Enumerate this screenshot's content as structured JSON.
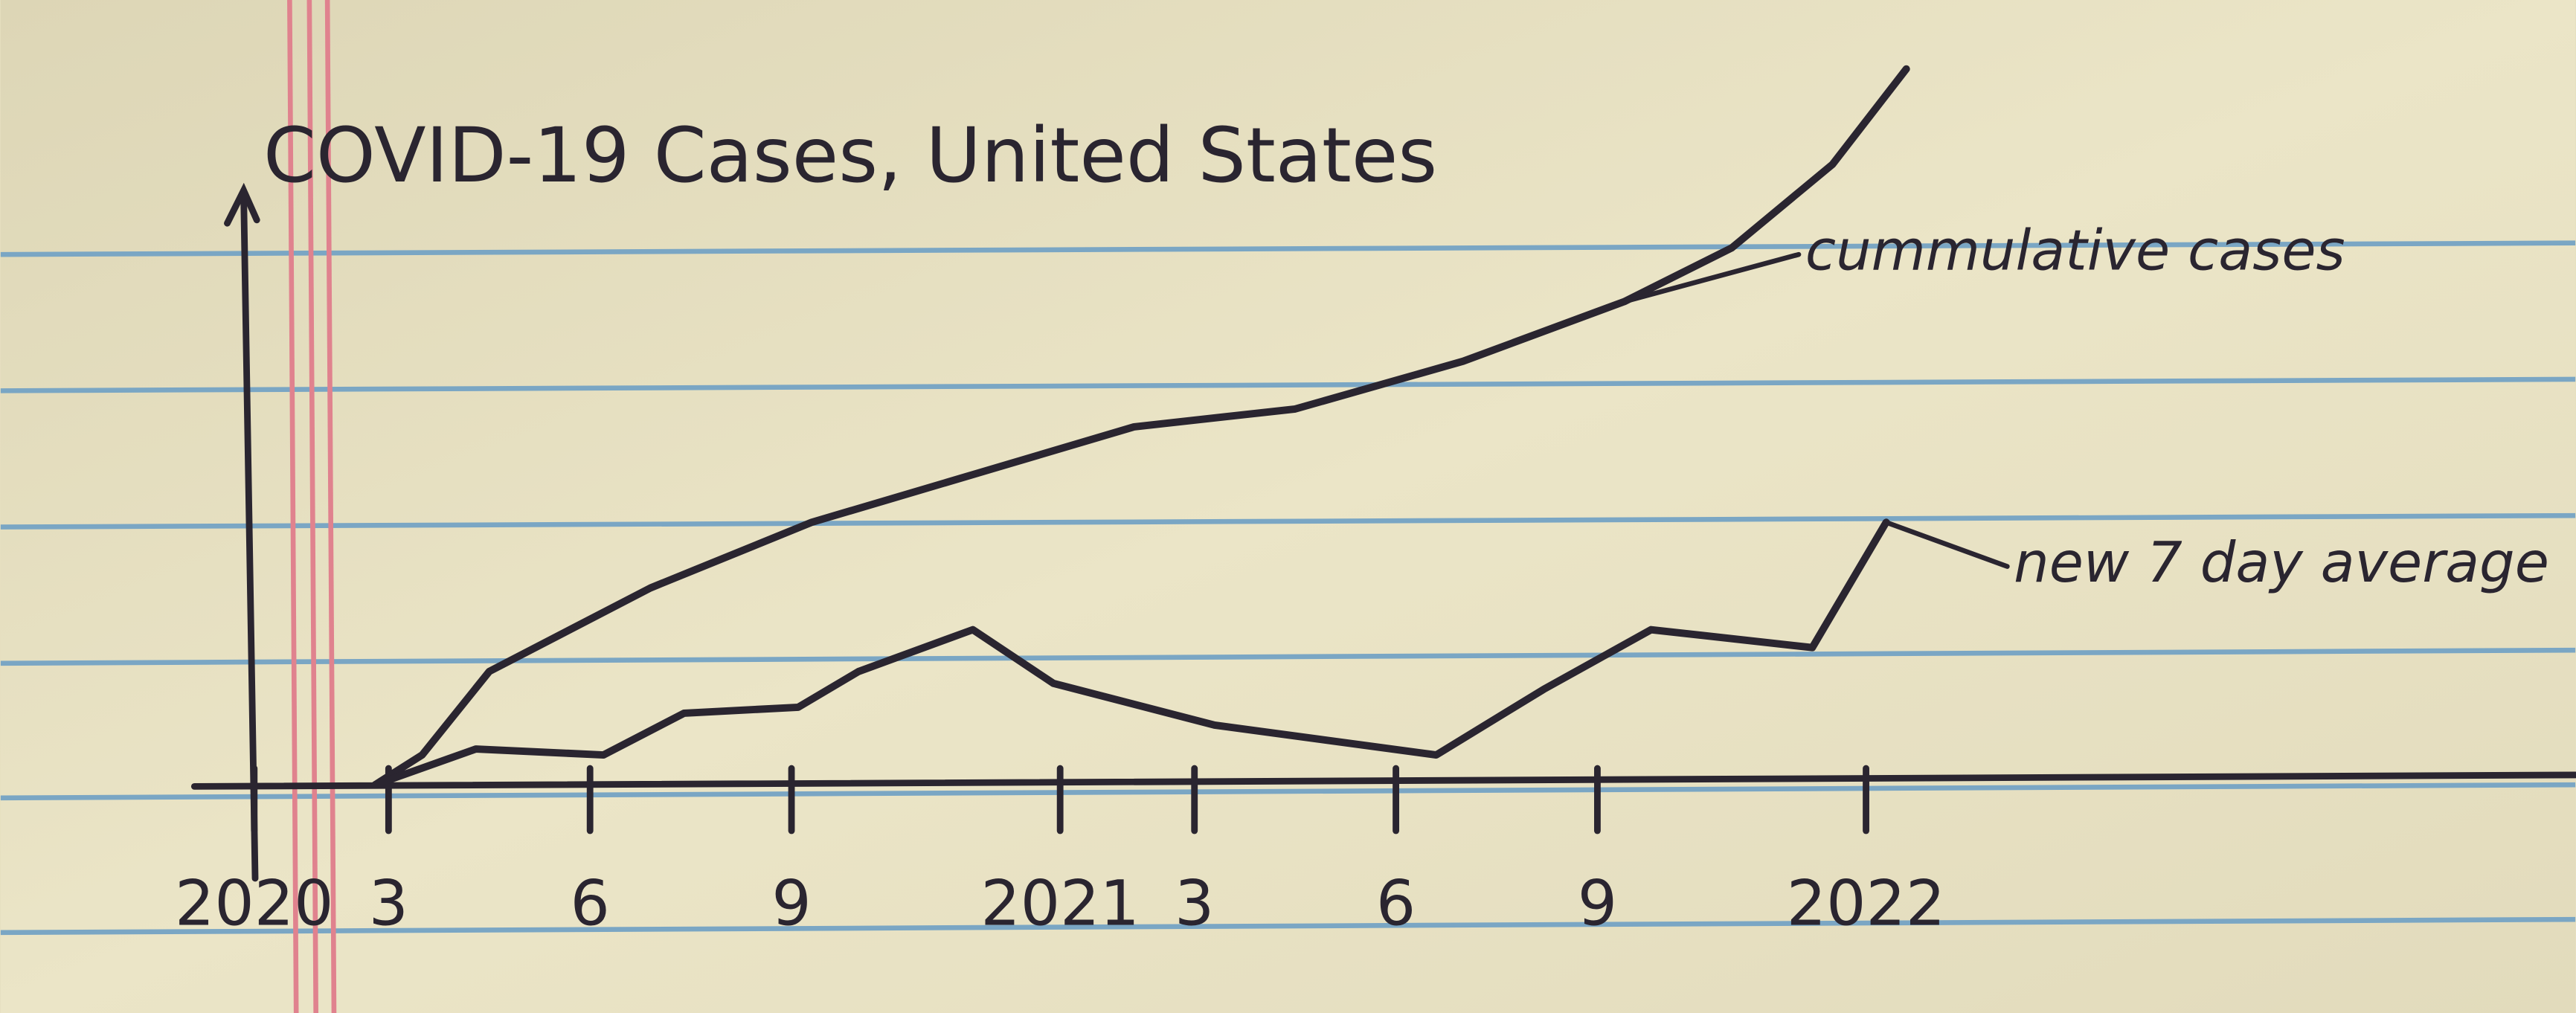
{
  "chart_data": {
    "type": "line",
    "title": "COVID-19 Cases, United States",
    "xlim": [
      -0.5,
      34
    ],
    "xticks": [
      {
        "value": 0,
        "label": "2020"
      },
      {
        "value": 2,
        "label": "3"
      },
      {
        "value": 5,
        "label": "6"
      },
      {
        "value": 8,
        "label": "9"
      },
      {
        "value": 12,
        "label": "2021"
      },
      {
        "value": 14,
        "label": "3"
      },
      {
        "value": 17,
        "label": "6"
      },
      {
        "value": 20,
        "label": "9"
      },
      {
        "value": 24,
        "label": "2022"
      }
    ],
    "ylim": [
      0,
      120
    ],
    "series": [
      {
        "name": "cummulative cases",
        "color": "#2a2530",
        "x": [
          1.8,
          2.5,
          3.5,
          5.9,
          8.3,
          10.7,
          13.1,
          15.5,
          18,
          20.4,
          22,
          23.5,
          24.6
        ],
        "values": [
          0,
          5,
          19,
          33,
          44,
          52,
          60,
          63,
          71,
          81,
          90,
          104,
          120
        ]
      },
      {
        "name": "new 7 day average",
        "color": "#2a2530",
        "x": [
          1.8,
          3.3,
          5.2,
          6.4,
          8.1,
          9,
          10.7,
          11.9,
          14.3,
          17.6,
          19.2,
          20.8,
          23.2,
          24.3
        ],
        "values": [
          0,
          6,
          5,
          12,
          13,
          19,
          26,
          17,
          10,
          5,
          16,
          26,
          23,
          44
        ]
      }
    ]
  }
}
